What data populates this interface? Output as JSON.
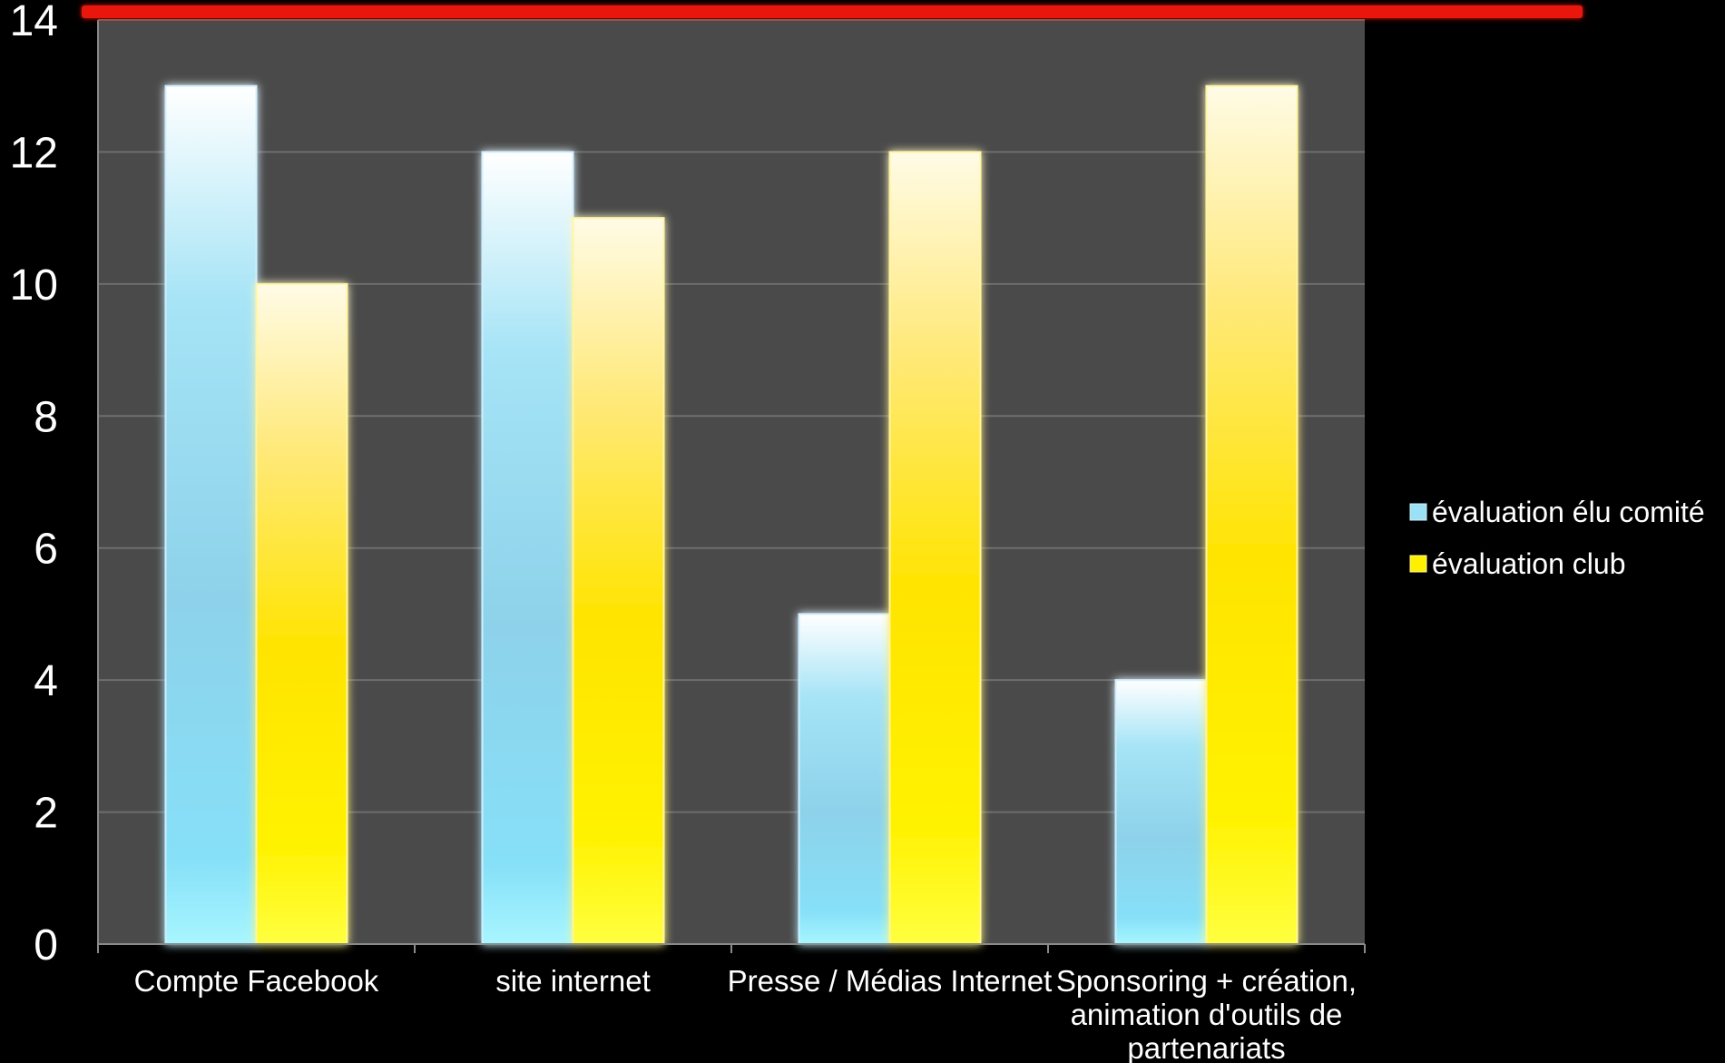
{
  "chart_data": {
    "type": "bar",
    "categories": [
      "Compte Facebook",
      "site internet",
      "Presse / Médias Internet",
      "Sponsoring + création, animation d'outils de partenariats"
    ],
    "category_lines": [
      [
        "Compte Facebook"
      ],
      [
        "site internet"
      ],
      [
        "Presse / Médias Internet"
      ],
      [
        "Sponsoring + création,",
        "animation d'outils de",
        "partenariats"
      ]
    ],
    "series": [
      {
        "name": "évaluation élu comité",
        "values": [
          13,
          12,
          5,
          4
        ],
        "color": "#8fd8f0"
      },
      {
        "name": "évaluation club",
        "values": [
          10,
          11,
          12,
          13
        ],
        "color": "#ffee00"
      }
    ],
    "ylim": [
      0,
      14
    ],
    "yticks": [
      "0",
      "2",
      "4",
      "6",
      "8",
      "10",
      "12",
      "14"
    ],
    "grid": true,
    "legend_position": "right",
    "title": "",
    "xlabel": "",
    "ylabel": "",
    "colors": {
      "background": "#000000",
      "plot_area": "#4a4a4a",
      "gridline": "#6e6e6e",
      "top_bar": "#e8180c"
    }
  }
}
